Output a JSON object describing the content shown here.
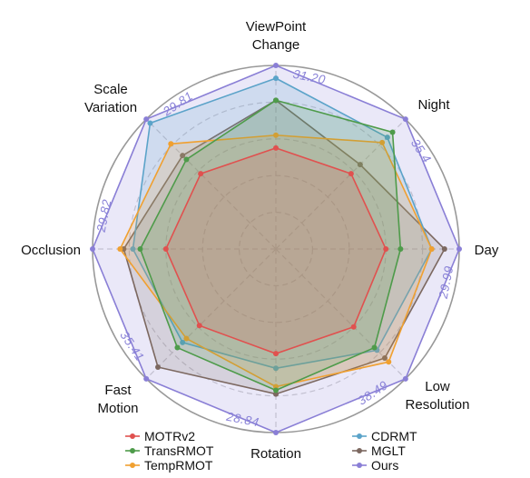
{
  "chart_data": {
    "type": "radar",
    "axes": [
      "ViewPoint Change",
      "Night",
      "Day",
      "Low Resolution",
      "Rotation",
      "Fast Motion",
      "Occlusion",
      "Scale Variation"
    ],
    "max_labels": [
      "31.20",
      "35.4",
      "29.99",
      "38.49",
      "28.84",
      "35.41",
      "29.82",
      "29.81"
    ],
    "grid_levels": 5,
    "series": [
      {
        "name": "MOTRv2",
        "color": "#e0514f",
        "values": [
          0.55,
          0.58,
          0.6,
          0.6,
          0.57,
          0.59,
          0.6,
          0.58
        ]
      },
      {
        "name": "TransRMOT",
        "color": "#4e9b4a",
        "values": [
          0.81,
          0.9,
          0.68,
          0.76,
          0.77,
          0.76,
          0.74,
          0.69
        ]
      },
      {
        "name": "TempRMOT",
        "color": "#f0a030",
        "values": [
          0.62,
          0.82,
          0.85,
          0.87,
          0.75,
          0.69,
          0.85,
          0.81
        ]
      },
      {
        "name": "CDRMT",
        "color": "#5ba3c9",
        "values": [
          0.93,
          0.86,
          0.85,
          0.78,
          0.65,
          0.72,
          0.78,
          0.97
        ]
      },
      {
        "name": "MGLT",
        "color": "#7c6860",
        "values": [
          0.81,
          0.65,
          0.92,
          0.84,
          0.79,
          0.91,
          0.83,
          0.72
        ]
      },
      {
        "name": "Ours",
        "color": "#8a7fd6",
        "values": [
          1.0,
          1.0,
          1.0,
          1.0,
          1.0,
          1.0,
          1.0,
          1.0
        ]
      }
    ]
  }
}
